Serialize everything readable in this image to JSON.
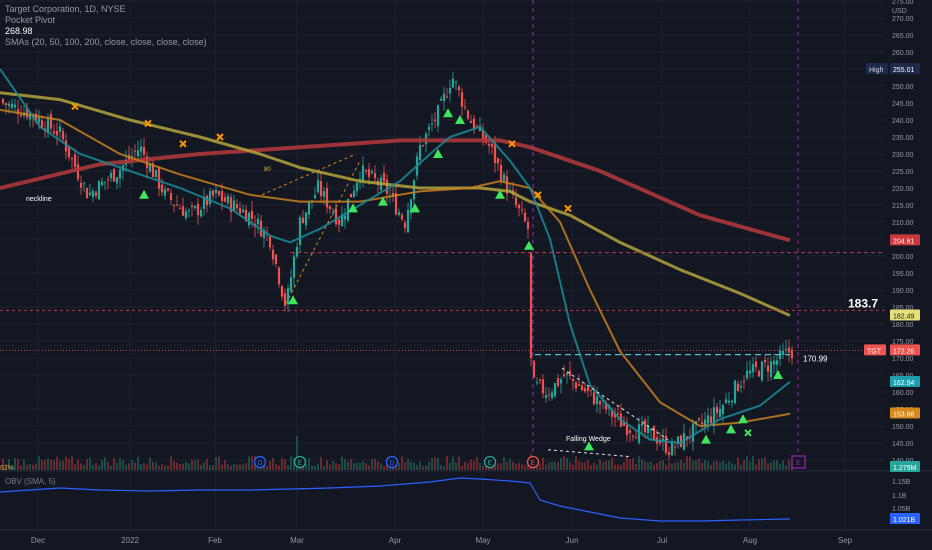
{
  "legend": {
    "title": "Target Corporation, 1D, NYSE",
    "indicator1": "Pocket Pivot",
    "close_value": "268.98",
    "indicator2": "SMAs (20, 50, 100, 200, close, close, close, close)"
  },
  "obv": {
    "title": "OBV (SMA, 5)",
    "values": [
      "1.15B",
      "1.1B",
      "1.05B",
      "1.021B"
    ]
  },
  "currency": "USD",
  "price_labels": {
    "high": "High",
    "high_value": "255.01",
    "sma200": "204.61",
    "big_level": "183.7",
    "sma100": "182.49",
    "tgt": "TGT",
    "price": "172.26",
    "breakout": "170.99",
    "sma20": "162.94",
    "sma50": "153.66",
    "volume": "1.279M"
  },
  "annotations": {
    "neckline": "neckline",
    "falling_wedge": "Falling Wedge",
    "eighty": "80",
    "pct": "62%"
  },
  "event_markers": [
    "D",
    "E",
    "D",
    "E",
    "E"
  ],
  "chart_data": {
    "type": "candlestick",
    "title": "Target Corporation, 1D, NYSE",
    "y_axis": {
      "ticks": [
        140,
        145,
        150,
        155,
        160,
        165,
        170,
        175,
        180,
        185,
        190,
        195,
        200,
        205,
        210,
        215,
        220,
        225,
        230,
        235,
        240,
        245,
        250,
        255,
        260,
        265,
        270,
        275
      ],
      "range": [
        140,
        277
      ]
    },
    "x_axis": {
      "ticks": [
        "Dec",
        "2022",
        "Feb",
        "Mar",
        "Apr",
        "May",
        "Jun",
        "Jul",
        "Aug",
        "Sep"
      ]
    },
    "key_points": [
      {
        "date": "late Nov 2021",
        "price": 245
      },
      {
        "date": "Dec 2021",
        "price": 225
      },
      {
        "date": "early Jan 2022",
        "price": 232
      },
      {
        "date": "late Feb 2022",
        "price": 185
      },
      {
        "date": "Mar 2022",
        "price": 220
      },
      {
        "date": "mid Apr 2022",
        "price": 255
      },
      {
        "date": "May 2022",
        "price": 210
      },
      {
        "date": "mid May 2022",
        "price": 160
      },
      {
        "date": "Jul 2022",
        "price": 143
      },
      {
        "date": "Aug 2022",
        "price": 172
      }
    ],
    "series": [
      {
        "name": "SMA 20",
        "color": "#1e9fae"
      },
      {
        "name": "SMA 50",
        "color": "#d6881c"
      },
      {
        "name": "SMA 100",
        "color": "#b7a53a"
      },
      {
        "name": "SMA 200",
        "color": "#c9383a"
      }
    ],
    "horizontal_levels": [
      201,
      184,
      170.99
    ]
  },
  "colors": {
    "up": "#26a69a",
    "down": "#ef5350",
    "bg": "#131722",
    "grid": "#1f2331"
  }
}
